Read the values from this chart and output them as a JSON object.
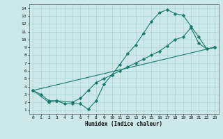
{
  "xlabel": "Humidex (Indice chaleur)",
  "bg_color": "#cce8e8",
  "line_color": "#1a7a6e",
  "grid_color": "#b0d8d8",
  "xlim": [
    -0.5,
    23.5
  ],
  "ylim": [
    0.5,
    14.5
  ],
  "xticks": [
    0,
    1,
    2,
    3,
    4,
    5,
    6,
    7,
    8,
    9,
    10,
    11,
    12,
    13,
    14,
    15,
    16,
    17,
    18,
    19,
    20,
    21,
    22,
    23
  ],
  "yticks": [
    1,
    2,
    3,
    4,
    5,
    6,
    7,
    8,
    9,
    10,
    11,
    12,
    13,
    14
  ],
  "line1_x": [
    0,
    1,
    2,
    3,
    4,
    5,
    6,
    7,
    8,
    9,
    10,
    11,
    12,
    13,
    14,
    15,
    16,
    17,
    18,
    19,
    20,
    21,
    22,
    23
  ],
  "line1_y": [
    3.5,
    3.0,
    2.2,
    2.2,
    1.8,
    1.8,
    1.8,
    1.1,
    2.2,
    4.3,
    5.5,
    6.8,
    8.2,
    9.3,
    10.8,
    12.3,
    13.4,
    13.8,
    13.3,
    13.1,
    11.7,
    10.3,
    8.8,
    9.0
  ],
  "line2_x": [
    0,
    2,
    3,
    5,
    6,
    7,
    8,
    9,
    10,
    11,
    12,
    13,
    14,
    15,
    16,
    17,
    18,
    19,
    20,
    21,
    22,
    23
  ],
  "line2_y": [
    3.5,
    2.0,
    2.2,
    2.0,
    2.5,
    3.5,
    4.5,
    5.0,
    5.5,
    6.0,
    6.5,
    7.0,
    7.5,
    8.0,
    8.5,
    9.2,
    10.0,
    10.3,
    11.5,
    9.5,
    8.8,
    9.0
  ],
  "line3_x": [
    0,
    23
  ],
  "line3_y": [
    3.5,
    9.0
  ]
}
